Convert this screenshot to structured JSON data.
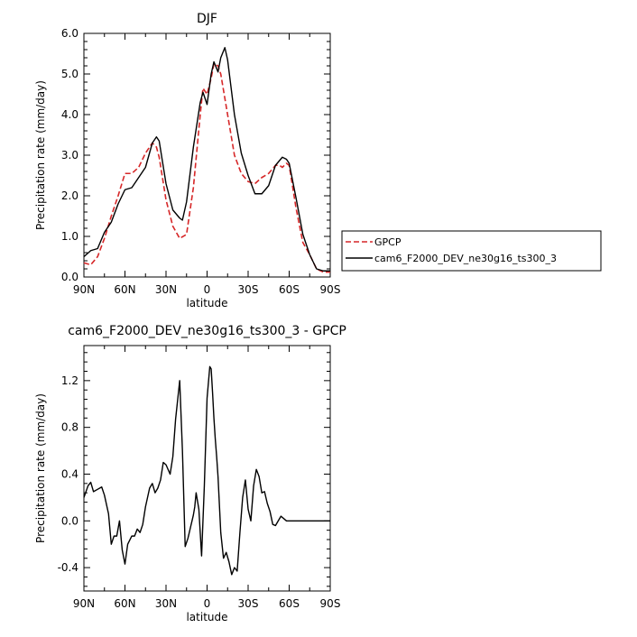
{
  "chart_data": [
    {
      "type": "line",
      "title": "DJF",
      "xlabel": "latitude",
      "ylabel": "Precipitation rate (mm/day)",
      "xlim": [
        90,
        -90
      ],
      "ylim": [
        0,
        6
      ],
      "x_ticks": [
        90,
        60,
        30,
        0,
        -30,
        -60,
        -90
      ],
      "x_tick_labels": [
        "90N",
        "60N",
        "30N",
        "0",
        "30S",
        "60S",
        "90S"
      ],
      "y_ticks": [
        0,
        1,
        2,
        3,
        4,
        5,
        6
      ],
      "y_tick_labels": [
        "0.0",
        "1.0",
        "2.0",
        "3.0",
        "4.0",
        "5.0",
        "6.0"
      ],
      "legend_position": "right",
      "series": [
        {
          "name": "GPCP",
          "color": "#d62728",
          "style": "dashed",
          "x": [
            90,
            85,
            80,
            75,
            70,
            65,
            60,
            55,
            50,
            45,
            40,
            37,
            35,
            30,
            25,
            20,
            15,
            10,
            5,
            3,
            0,
            -3,
            -5,
            -8,
            -10,
            -15,
            -20,
            -25,
            -30,
            -35,
            -40,
            -45,
            -50,
            -53,
            -55,
            -58,
            -60,
            -65,
            -70,
            -75,
            -80,
            -85,
            -90
          ],
          "y": [
            0.35,
            0.3,
            0.5,
            0.95,
            1.5,
            2.0,
            2.55,
            2.55,
            2.7,
            3.05,
            3.3,
            3.2,
            2.95,
            1.9,
            1.25,
            0.95,
            1.05,
            2.2,
            4.0,
            4.65,
            4.5,
            4.9,
            5.25,
            5.2,
            5.0,
            4.0,
            3.0,
            2.55,
            2.35,
            2.3,
            2.45,
            2.55,
            2.75,
            2.75,
            2.7,
            2.8,
            2.75,
            1.7,
            0.85,
            0.55,
            0.2,
            0.12,
            0.12
          ]
        },
        {
          "name": "cam6_F2000_DEV_ne30g16_ts300_3",
          "color": "#000000",
          "style": "solid",
          "x": [
            90,
            85,
            80,
            75,
            70,
            65,
            60,
            55,
            50,
            45,
            40,
            37,
            35,
            30,
            25,
            20,
            18,
            15,
            10,
            5,
            3,
            0,
            -3,
            -5,
            -8,
            -10,
            -13,
            -15,
            -20,
            -25,
            -30,
            -35,
            -40,
            -45,
            -50,
            -55,
            -58,
            -60,
            -65,
            -70,
            -75,
            -80,
            -85,
            -90
          ],
          "y": [
            0.5,
            0.65,
            0.7,
            1.1,
            1.35,
            1.8,
            2.15,
            2.2,
            2.45,
            2.7,
            3.3,
            3.45,
            3.35,
            2.3,
            1.65,
            1.45,
            1.4,
            1.85,
            3.2,
            4.3,
            4.55,
            4.25,
            5.0,
            5.3,
            5.05,
            5.4,
            5.65,
            5.35,
            4.0,
            3.05,
            2.5,
            2.05,
            2.05,
            2.25,
            2.75,
            2.95,
            2.9,
            2.8,
            1.95,
            1.05,
            0.55,
            0.2,
            0.15,
            0.15
          ]
        }
      ]
    },
    {
      "type": "line",
      "title": "cam6_F2000_DEV_ne30g16_ts300_3 - GPCP",
      "xlabel": "latitude",
      "ylabel": "Precipitation rate (mm/day)",
      "xlim": [
        90,
        -90
      ],
      "ylim": [
        -0.6,
        1.5
      ],
      "x_ticks": [
        90,
        60,
        30,
        0,
        -30,
        -60,
        -90
      ],
      "x_tick_labels": [
        "90N",
        "60N",
        "30N",
        "0",
        "30S",
        "60S",
        "90S"
      ],
      "y_ticks": [
        -0.4,
        0,
        0.4,
        0.8,
        1.2
      ],
      "y_tick_labels": [
        "-0.4",
        "0.0",
        "0.4",
        "0.8",
        "1.2"
      ],
      "series": [
        {
          "color": "#000000",
          "style": "solid",
          "x": [
            90,
            87,
            85,
            83,
            80,
            77,
            75,
            72,
            70,
            68,
            66,
            64,
            62,
            60,
            58,
            55,
            53,
            51,
            49,
            47,
            45,
            42,
            40,
            38,
            36,
            34,
            32,
            30,
            27,
            25,
            23,
            20,
            18,
            16,
            14,
            12,
            11,
            10,
            9,
            8,
            6,
            4,
            2,
            0,
            -2,
            -3,
            -4,
            -5,
            -6,
            -7,
            -8,
            -10,
            -12,
            -14,
            -16,
            -18,
            -20,
            -22,
            -24,
            -26,
            -28,
            -30,
            -32,
            -34,
            -36,
            -38,
            -40,
            -42,
            -44,
            -46,
            -48,
            -50,
            -52,
            -54,
            -56,
            -58,
            -60,
            -62,
            -64,
            -66,
            -68,
            -70,
            -72,
            -74,
            -76,
            -78,
            -80,
            -82,
            -84,
            -86,
            -88,
            -90
          ],
          "y": [
            0.2,
            0.3,
            0.33,
            0.25,
            0.27,
            0.29,
            0.22,
            0.06,
            -0.2,
            -0.13,
            -0.13,
            0.0,
            -0.25,
            -0.37,
            -0.2,
            -0.13,
            -0.13,
            -0.07,
            -0.1,
            -0.03,
            0.12,
            0.28,
            0.32,
            0.24,
            0.28,
            0.35,
            0.5,
            0.48,
            0.4,
            0.55,
            0.87,
            1.2,
            0.6,
            -0.22,
            -0.15,
            -0.05,
            0.0,
            0.05,
            0.12,
            0.24,
            0.1,
            -0.3,
            0.3,
            1.05,
            1.32,
            1.3,
            1.1,
            0.88,
            0.7,
            0.55,
            0.38,
            -0.1,
            -0.32,
            -0.27,
            -0.35,
            -0.46,
            -0.4,
            -0.43,
            -0.1,
            0.2,
            0.35,
            0.1,
            0.0,
            0.3,
            0.44,
            0.38,
            0.24,
            0.25,
            0.15,
            0.08,
            -0.03,
            -0.04,
            0.0,
            0.04,
            0.02,
            0.0,
            0.0,
            0.0,
            0.0,
            0.0,
            0.0,
            0.0,
            0.0,
            0.0,
            0.0,
            0.0,
            0.0,
            0.0,
            0.0,
            0.0,
            0.0,
            0.0
          ]
        }
      ]
    }
  ]
}
